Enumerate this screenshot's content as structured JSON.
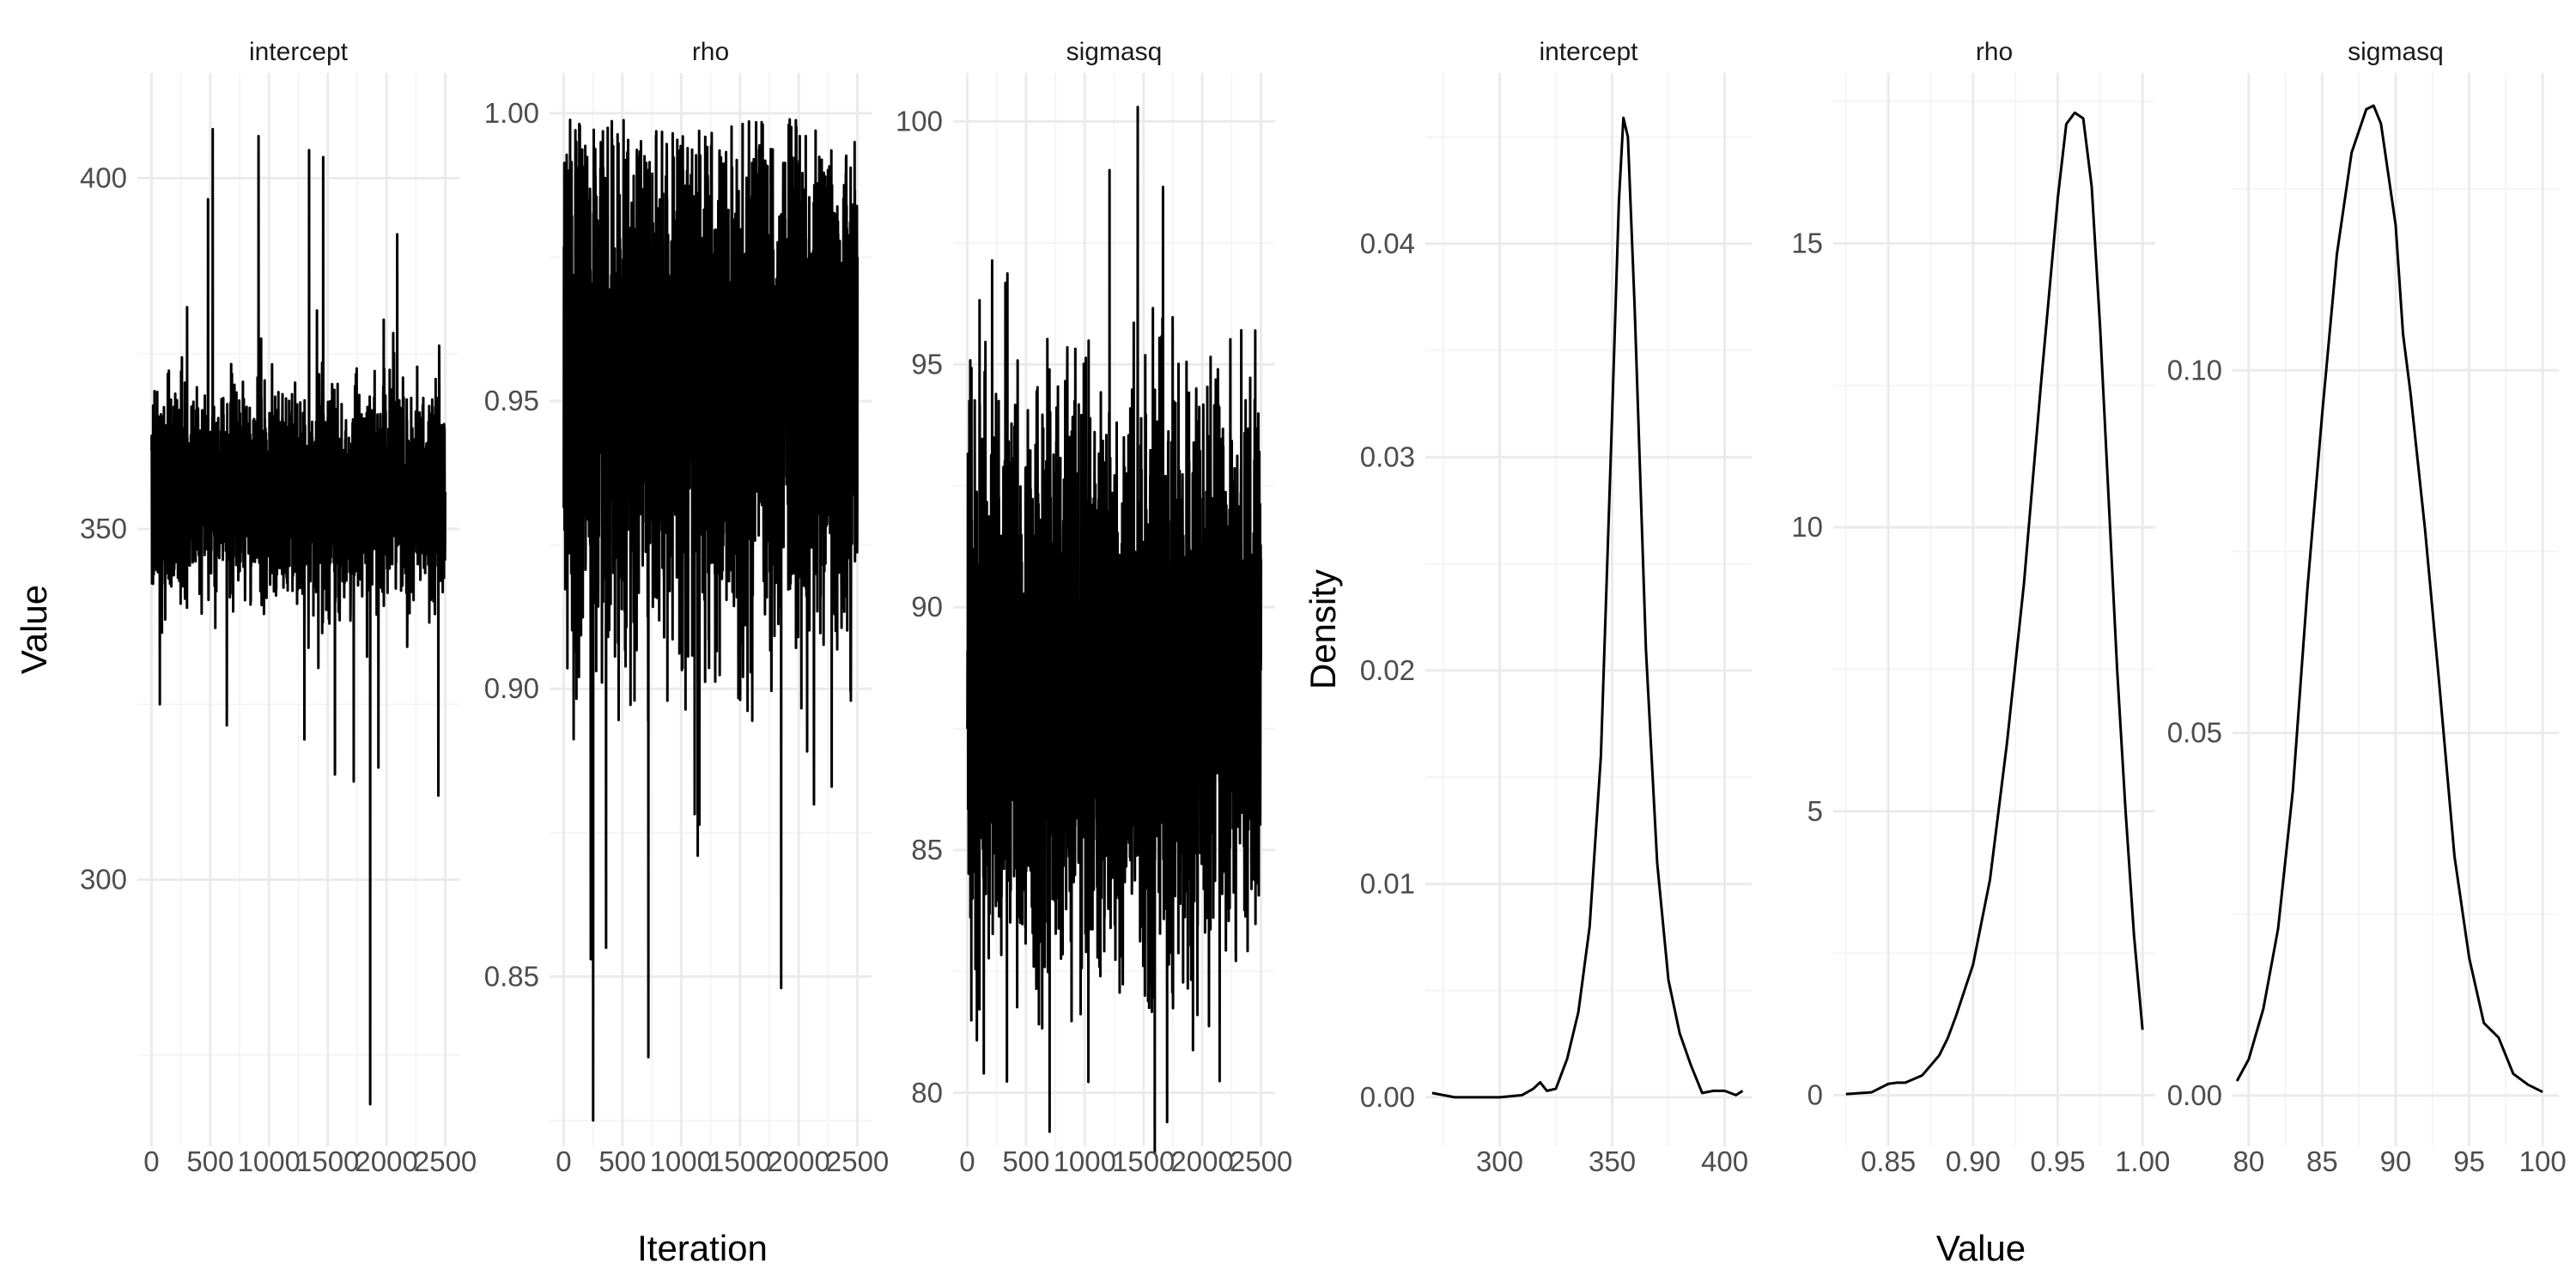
{
  "figure_labels": {
    "trace_xlabel": "Iteration",
    "trace_ylabel": "Value",
    "density_xlabel": "Value",
    "density_ylabel": "Density"
  },
  "colors": {
    "line": "#000000",
    "grid_major": "#ebebeb",
    "grid_minor": "#f3f3f3",
    "background": "#ffffff"
  },
  "chart_data": [
    {
      "type": "line",
      "title": "intercept",
      "xlabel": "",
      "ylabel": "Value",
      "xlim": [
        -120,
        2620
      ],
      "ylim": [
        262,
        415
      ],
      "x_ticks": [
        0,
        500,
        1000,
        1500,
        2000,
        2500
      ],
      "x_tick_labels": [
        "0",
        "500",
        "1000",
        "1500",
        "2000",
        "2500"
      ],
      "y_ticks": [
        300,
        350,
        400
      ],
      "y_tick_labels": [
        "300",
        "350",
        "400"
      ],
      "trace": {
        "n": 2500,
        "center": 355,
        "sd": 7,
        "spikes_high": [
          [
            520,
            407
          ],
          [
            910,
            406
          ],
          [
            1340,
            404
          ],
          [
            1460,
            403
          ],
          [
            2090,
            392
          ],
          [
            480,
            397
          ]
        ],
        "spikes_low": [
          [
            70,
            325
          ],
          [
            640,
            322
          ],
          [
            1300,
            320
          ],
          [
            1560,
            315
          ],
          [
            1720,
            314
          ],
          [
            1860,
            268
          ],
          [
            1930,
            316
          ],
          [
            2440,
            312
          ]
        ]
      },
      "grid": true
    },
    {
      "type": "line",
      "title": "rho",
      "xlabel": "Iteration",
      "ylabel": "",
      "xlim": [
        -120,
        2620
      ],
      "ylim": [
        0.8205,
        1.007
      ],
      "x_ticks": [
        0,
        500,
        1000,
        1500,
        2000,
        2500
      ],
      "x_tick_labels": [
        "0",
        "500",
        "1000",
        "1500",
        "2000",
        "2500"
      ],
      "y_ticks": [
        0.85,
        0.9,
        0.95,
        1.0
      ],
      "y_tick_labels": [
        "0.85",
        "0.90",
        "0.95",
        "1.00"
      ],
      "trace": {
        "n": 2500,
        "center": 0.953,
        "sd": 0.022,
        "max": 0.999,
        "spikes_low": [
          [
            250,
            0.825
          ],
          [
            230,
            0.853
          ],
          [
            360,
            0.855
          ],
          [
            720,
            0.836
          ],
          [
            1140,
            0.871
          ],
          [
            1850,
            0.848
          ],
          [
            2280,
            0.883
          ]
        ]
      },
      "grid": true
    },
    {
      "type": "line",
      "title": "sigmasq",
      "xlabel": "",
      "ylabel": "",
      "xlim": [
        -120,
        2620
      ],
      "ylim": [
        78.9,
        101.0
      ],
      "x_ticks": [
        0,
        500,
        1000,
        1500,
        2000,
        2500
      ],
      "x_tick_labels": [
        "0",
        "500",
        "1000",
        "1500",
        "2000",
        "2500"
      ],
      "y_ticks": [
        80,
        85,
        90,
        95,
        100
      ],
      "y_tick_labels": [
        "80",
        "85",
        "90",
        "95",
        "100"
      ],
      "trace": {
        "n": 2500,
        "center": 88.5,
        "sd": 2.8,
        "spikes_high": [
          [
            1450,
            100.3
          ],
          [
            1210,
            99.0
          ]
        ],
        "spikes_low": [
          [
            700,
            79.2
          ],
          [
            1700,
            79.4
          ],
          [
            140,
            80.4
          ]
        ]
      },
      "grid": true
    },
    {
      "type": "line",
      "title": "intercept",
      "xlabel": "",
      "ylabel": "Density",
      "xlim": [
        267,
        412
      ],
      "ylim": [
        -0.0023,
        0.048
      ],
      "x_ticks": [
        300,
        350,
        400
      ],
      "x_tick_labels": [
        "300",
        "350",
        "400"
      ],
      "y_ticks": [
        0,
        0.01,
        0.02,
        0.03,
        0.04
      ],
      "y_tick_labels": [
        "0.00",
        "0.01",
        "0.02",
        "0.03",
        "0.04"
      ],
      "x": [
        270,
        280,
        290,
        300,
        310,
        315,
        318,
        321,
        325,
        330,
        335,
        340,
        345,
        350,
        353,
        355,
        357,
        360,
        365,
        370,
        375,
        380,
        385,
        390,
        395,
        400,
        405,
        408
      ],
      "y": [
        0.0002,
        0.0,
        0.0,
        0.0,
        0.0001,
        0.0004,
        0.0007,
        0.0003,
        0.0004,
        0.0018,
        0.004,
        0.008,
        0.016,
        0.032,
        0.042,
        0.0459,
        0.045,
        0.037,
        0.021,
        0.011,
        0.0055,
        0.003,
        0.0015,
        0.0002,
        0.0003,
        0.0003,
        0.0001,
        0.0003
      ],
      "grid": true
    },
    {
      "type": "line",
      "title": "rho",
      "xlabel": "Value",
      "ylabel": "",
      "xlim": [
        0.8175,
        1.0075
      ],
      "ylim": [
        -0.9,
        18.0
      ],
      "x_ticks": [
        0.85,
        0.9,
        0.95,
        1.0
      ],
      "x_tick_labels": [
        "0.85",
        "0.90",
        "0.95",
        "1.00"
      ],
      "y_ticks": [
        0,
        5,
        10,
        15
      ],
      "y_tick_labels": [
        "0",
        "5",
        "10",
        "15"
      ],
      "x": [
        0.825,
        0.84,
        0.85,
        0.855,
        0.86,
        0.87,
        0.88,
        0.885,
        0.89,
        0.9,
        0.91,
        0.92,
        0.93,
        0.94,
        0.95,
        0.955,
        0.96,
        0.965,
        0.97,
        0.975,
        0.98,
        0.985,
        0.99,
        0.995,
        1.0
      ],
      "y": [
        0.02,
        0.05,
        0.2,
        0.22,
        0.22,
        0.35,
        0.7,
        1.0,
        1.4,
        2.3,
        3.8,
        6.2,
        9.0,
        12.5,
        15.8,
        17.1,
        17.3,
        17.2,
        16.0,
        13.5,
        10.5,
        7.5,
        5.0,
        2.8,
        1.15
      ],
      "grid": true
    },
    {
      "type": "line",
      "title": "sigmasq",
      "xlabel": "",
      "ylabel": "",
      "xlim": [
        78.9,
        101.1
      ],
      "ylim": [
        -0.007,
        0.141
      ],
      "x_ticks": [
        80,
        85,
        90,
        95,
        100
      ],
      "x_tick_labels": [
        "80",
        "85",
        "90",
        "95",
        "100"
      ],
      "y_ticks": [
        0,
        0.05,
        0.1
      ],
      "y_tick_labels": [
        "0.00",
        "0.05",
        "0.10"
      ],
      "x": [
        79.2,
        80,
        81,
        82,
        83,
        84,
        85,
        86,
        87,
        88,
        88.5,
        89,
        90,
        90.5,
        91,
        92,
        93,
        94,
        95,
        96,
        97,
        98,
        99,
        100
      ],
      "y": [
        0.002,
        0.005,
        0.012,
        0.023,
        0.042,
        0.07,
        0.094,
        0.116,
        0.13,
        0.136,
        0.1365,
        0.134,
        0.12,
        0.105,
        0.097,
        0.078,
        0.056,
        0.033,
        0.019,
        0.01,
        0.008,
        0.003,
        0.0015,
        0.0005
      ],
      "grid": true
    }
  ]
}
